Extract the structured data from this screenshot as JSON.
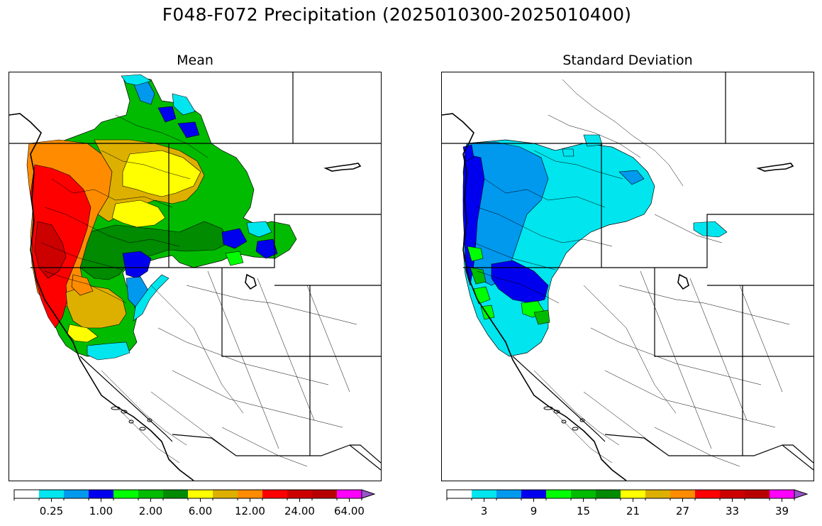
{
  "figure": {
    "title": "F048-F072 Precipitation (2025010300-2025010400)"
  },
  "colors": {
    "white": "#ffffff",
    "cyan": "#00e5ee",
    "lightblue": "#0099ee",
    "blue": "#0000ee",
    "lime": "#00ff00",
    "green": "#00bb00",
    "darkgreen": "#008b00",
    "yellow": "#ffff00",
    "gold": "#ddb000",
    "orange": "#ff8c00",
    "red": "#ff0000",
    "darkred": "#cd0000",
    "crimson": "#b80000",
    "magenta": "#ff00ff",
    "purple": "#9955cc"
  },
  "chart_data": [
    {
      "type": "heatmap",
      "title": "Mean",
      "colorbar": {
        "bins": [
          "white",
          "cyan",
          "lightblue",
          "blue",
          "lime",
          "green",
          "darkgreen",
          "yellow",
          "gold",
          "orange",
          "red",
          "darkred",
          "crimson",
          "magenta",
          "purple"
        ],
        "extend": "max",
        "tick_labels": [
          "0.25",
          "1.00",
          "2.00",
          "6.00",
          "12.00",
          "24.00",
          "64.00"
        ],
        "tick_label_bins": [
          1,
          3,
          5,
          7,
          9,
          11,
          13
        ]
      },
      "regions": [
        {
          "region": "Coastal Oregon / Northern California",
          "class": "red to crimson"
        },
        {
          "region": "Western Washington / Olympic coast",
          "class": "orange to red"
        },
        {
          "region": "Oregon / Washington Cascades",
          "class": "orange and gold"
        },
        {
          "region": "Northern Idaho / Western Montana",
          "class": "yellow and gold"
        },
        {
          "region": "Eastern Washington / British Columbia",
          "class": "green"
        },
        {
          "region": "Northeastern Oregon / Central Idaho",
          "class": "dark green to blue"
        },
        {
          "region": "Northern Sierra Nevada",
          "class": "gold and yellow"
        },
        {
          "region": "Northern California interior edge",
          "class": "green to cyan"
        },
        {
          "region": "Northwestern Wyoming",
          "class": "green"
        },
        {
          "region": "Southwest, Great Basin, Southern California",
          "class": "no precipitation"
        }
      ]
    },
    {
      "type": "heatmap",
      "title": "Standard Deviation",
      "colorbar": {
        "bins": [
          "white",
          "cyan",
          "lightblue",
          "blue",
          "lime",
          "green",
          "darkgreen",
          "yellow",
          "gold",
          "orange",
          "red",
          "darkred",
          "crimson",
          "magenta",
          "purple"
        ],
        "extend": "max",
        "tick_labels": [
          "3",
          "9",
          "15",
          "21",
          "27",
          "33",
          "39"
        ],
        "tick_label_bins": [
          1,
          3,
          5,
          7,
          9,
          11,
          13
        ]
      },
      "regions": [
        {
          "region": "Coastal Oregon / Northern California",
          "class": "blue with lime patches"
        },
        {
          "region": "Western Washington / Oregon Cascades",
          "class": "light blue"
        },
        {
          "region": "Eastern Washington / Idaho / Montana",
          "class": "cyan"
        },
        {
          "region": "Northern Sierra Nevada",
          "class": "blue with lime patches"
        },
        {
          "region": "Northwestern Wyoming",
          "class": "cyan"
        },
        {
          "region": "Southwest, Great Basin, Southern California",
          "class": "lowest bin"
        }
      ]
    }
  ]
}
